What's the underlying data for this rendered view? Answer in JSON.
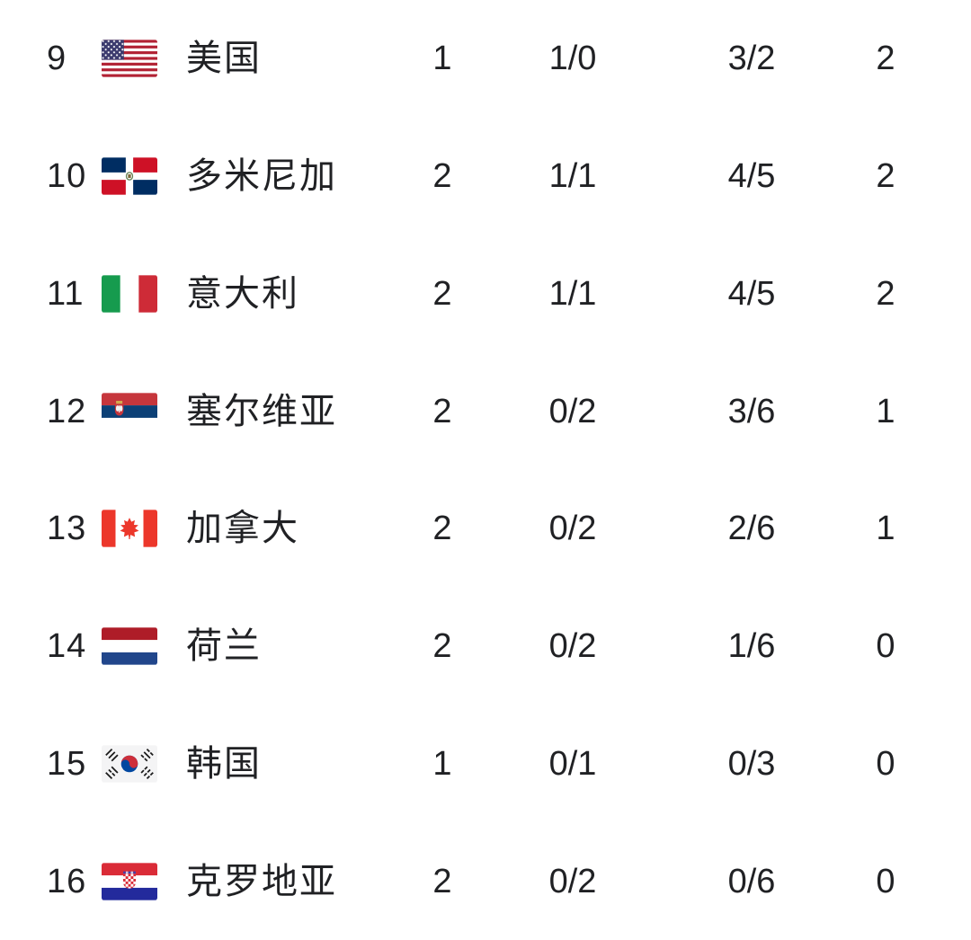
{
  "table": {
    "text_color": "#202124",
    "background_color": "#ffffff",
    "rows": [
      {
        "rank": "9",
        "flag": "us",
        "team": "美国",
        "played": "1",
        "win_loss": "1/0",
        "sets": "3/2",
        "points": "2"
      },
      {
        "rank": "10",
        "flag": "do",
        "team": "多米尼加",
        "played": "2",
        "win_loss": "1/1",
        "sets": "4/5",
        "points": "2"
      },
      {
        "rank": "11",
        "flag": "it",
        "team": "意大利",
        "played": "2",
        "win_loss": "1/1",
        "sets": "4/5",
        "points": "2"
      },
      {
        "rank": "12",
        "flag": "rs",
        "team": "塞尔维亚",
        "played": "2",
        "win_loss": "0/2",
        "sets": "3/6",
        "points": "1"
      },
      {
        "rank": "13",
        "flag": "ca",
        "team": "加拿大",
        "played": "2",
        "win_loss": "0/2",
        "sets": "2/6",
        "points": "1"
      },
      {
        "rank": "14",
        "flag": "nl",
        "team": "荷兰",
        "played": "2",
        "win_loss": "0/2",
        "sets": "1/6",
        "points": "0"
      },
      {
        "rank": "15",
        "flag": "kr",
        "team": "韩国",
        "played": "1",
        "win_loss": "0/1",
        "sets": "0/3",
        "points": "0"
      },
      {
        "rank": "16",
        "flag": "hr",
        "team": "克罗地亚",
        "played": "2",
        "win_loss": "0/2",
        "sets": "0/6",
        "points": "0"
      }
    ],
    "flag_names": {
      "us": "usa-flag-icon",
      "do": "dominican-republic-flag-icon",
      "it": "italy-flag-icon",
      "rs": "serbia-flag-icon",
      "ca": "canada-flag-icon",
      "nl": "netherlands-flag-icon",
      "kr": "south-korea-flag-icon",
      "hr": "croatia-flag-icon"
    }
  }
}
